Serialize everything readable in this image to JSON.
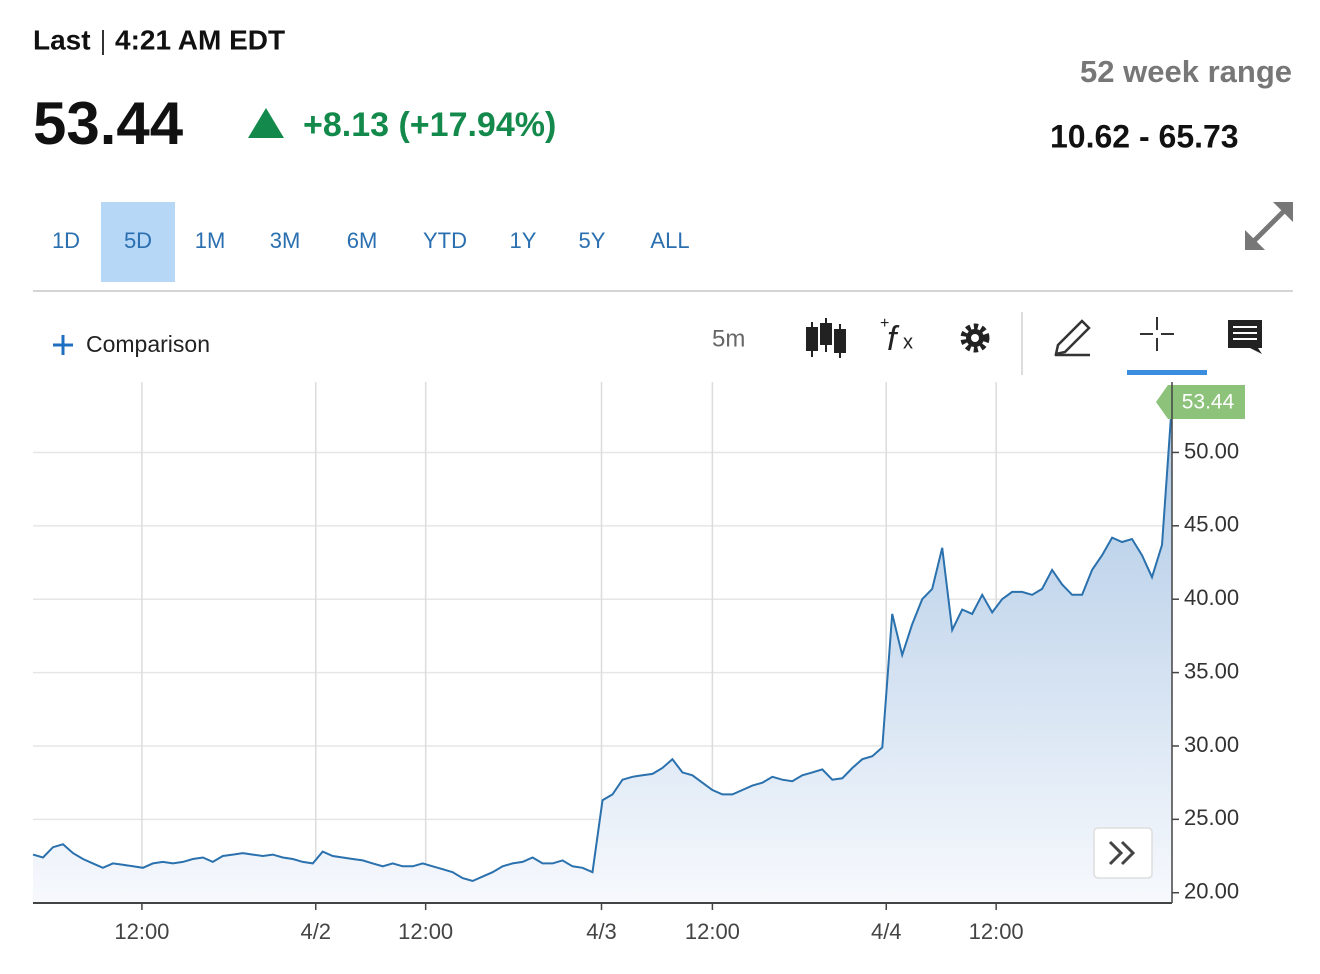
{
  "header": {
    "last_label": "Last",
    "time": "4:21 AM EDT",
    "price": "53.44",
    "change": "+8.13 (+17.94%)",
    "range_label": "52 week range",
    "range": "10.62 - 65.73"
  },
  "toolbar": {
    "tabs": [
      "1D",
      "5D",
      "1M",
      "3M",
      "6M",
      "YTD",
      "1Y",
      "5Y",
      "ALL"
    ],
    "active_tab": "5D",
    "comparison": "Comparison",
    "interval": "5m"
  },
  "chart_data": {
    "type": "area",
    "color": "#2a71ad",
    "label_color": "#8cc27a",
    "values": [
      22.6,
      22.4,
      23.1,
      23.3,
      22.7,
      22.3,
      22.0,
      21.7,
      22.0,
      21.9,
      21.8,
      21.7,
      22.0,
      22.1,
      22.0,
      22.1,
      22.3,
      22.4,
      22.1,
      22.5,
      22.6,
      22.7,
      22.6,
      22.5,
      22.6,
      22.4,
      22.3,
      22.1,
      22.0,
      22.8,
      22.5,
      22.4,
      22.3,
      22.2,
      22.0,
      21.8,
      22.0,
      21.8,
      21.8,
      22.0,
      21.8,
      21.6,
      21.4,
      21.0,
      20.8,
      21.1,
      21.4,
      21.8,
      22.0,
      22.1,
      22.4,
      22.0,
      22.0,
      22.2,
      21.8,
      21.7,
      21.4,
      26.3,
      26.7,
      27.7,
      27.9,
      28.0,
      28.1,
      28.5,
      29.1,
      28.2,
      28.0,
      27.5,
      27.0,
      26.7,
      26.7,
      27.0,
      27.3,
      27.5,
      27.9,
      27.7,
      27.6,
      28.0,
      28.2,
      28.4,
      27.7,
      27.8,
      28.5,
      29.1,
      29.3,
      29.9,
      39.0,
      36.2,
      38.3,
      40.0,
      40.7,
      43.5,
      37.9,
      39.3,
      39.0,
      40.3,
      39.1,
      40.0,
      40.5,
      40.5,
      40.3,
      40.7,
      42.0,
      41.0,
      40.3,
      40.3,
      42.0,
      43.0,
      44.2,
      43.9,
      44.1,
      43.0,
      41.5,
      43.7,
      53.44
    ],
    "xlim": [
      0,
      114
    ],
    "xticks": [
      {
        "value": 10.9,
        "label": "12:00"
      },
      {
        "value": 28.3,
        "label": "4/2"
      },
      {
        "value": 39.3,
        "label": "12:00"
      },
      {
        "value": 56.9,
        "label": "4/3"
      },
      {
        "value": 68.0,
        "label": "12:00"
      },
      {
        "value": 85.4,
        "label": "4/4"
      },
      {
        "value": 96.4,
        "label": "12:00"
      }
    ],
    "ylim": [
      19.3,
      54.8
    ],
    "yticks": [
      {
        "value": 20,
        "label": "20.00"
      },
      {
        "value": 25,
        "label": "25.00"
      },
      {
        "value": 30,
        "label": "30.00"
      },
      {
        "value": 35,
        "label": "35.00"
      },
      {
        "value": 40,
        "label": "40.00"
      },
      {
        "value": 45,
        "label": "45.00"
      },
      {
        "value": 50,
        "label": "50.00"
      }
    ],
    "grid": true
  }
}
